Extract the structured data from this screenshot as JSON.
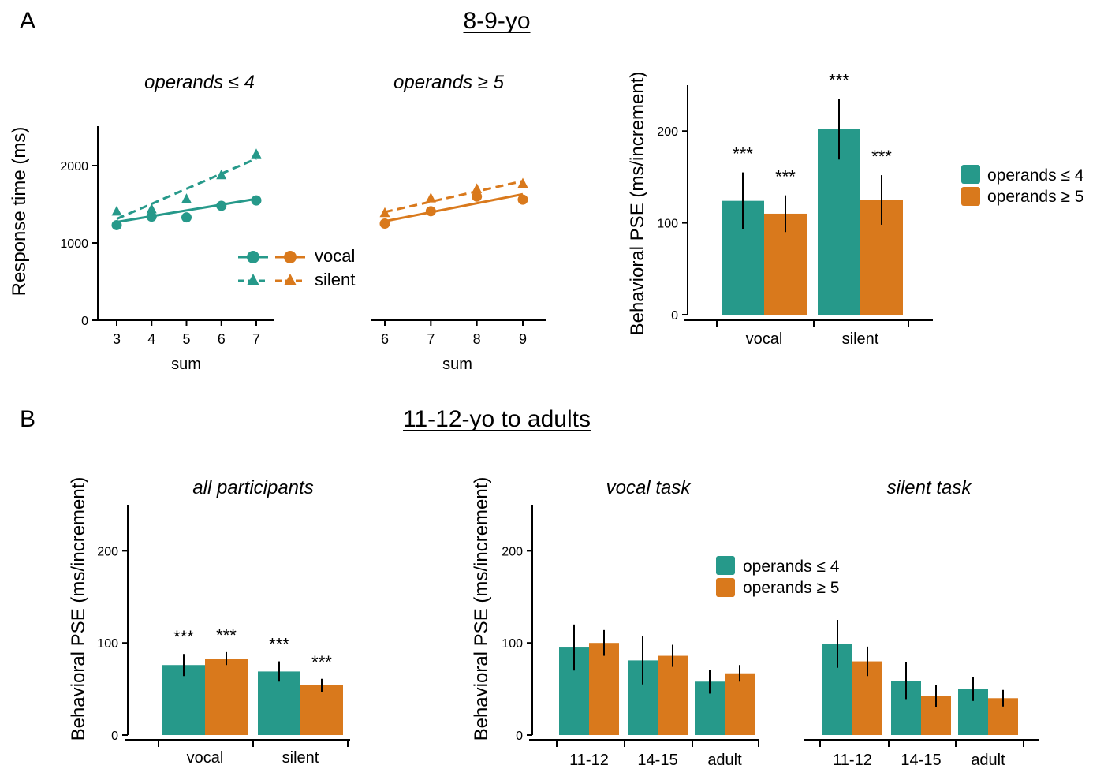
{
  "colors": {
    "teal": "#26998a",
    "orange": "#d9791c",
    "axis": "#000000"
  },
  "panel_a": {
    "letter": "A",
    "title": "8-9-yo",
    "legend": {
      "vocal": "vocal",
      "silent": "silent"
    },
    "bar_legend": {
      "small": "operands ≤ 4",
      "large": "operands ≥ 5"
    }
  },
  "panel_b": {
    "letter": "B",
    "title": "11-12-yo to adults",
    "legend": {
      "small": "operands ≤ 4",
      "large": "operands ≥ 5"
    }
  },
  "chart_data": [
    {
      "type": "line",
      "title": "operands ≤ 4",
      "xlabel": "sum",
      "ylabel": "Response time (ms)",
      "x": [
        3,
        4,
        5,
        6,
        7
      ],
      "xlim": [
        2.6,
        7.6
      ],
      "ylim": [
        0,
        2500
      ],
      "yticks": [
        0,
        1000,
        2000
      ],
      "series": [
        {
          "name": "vocal",
          "marker": "circle",
          "dashed": false,
          "color": "#26998a",
          "values": [
            1230,
            1340,
            1330,
            1480,
            1550
          ],
          "fit": [
            1270,
            1570
          ]
        },
        {
          "name": "silent",
          "marker": "triangle",
          "dashed": true,
          "color": "#26998a",
          "values": [
            1410,
            1440,
            1570,
            1880,
            2150
          ],
          "fit": [
            1310,
            2090
          ]
        }
      ]
    },
    {
      "type": "line",
      "title": "operands ≥ 5",
      "xlabel": "sum",
      "ylabel": "",
      "x": [
        6,
        7,
        8,
        9
      ],
      "xlim": [
        5.7,
        9.1
      ],
      "ylim": [
        0,
        2500
      ],
      "yticks": [],
      "series": [
        {
          "name": "vocal",
          "marker": "circle",
          "dashed": false,
          "color": "#d9791c",
          "values": [
            1250,
            1410,
            1600,
            1560
          ],
          "fit": [
            1280,
            1630
          ]
        },
        {
          "name": "silent",
          "marker": "triangle",
          "dashed": true,
          "color": "#d9791c",
          "values": [
            1390,
            1580,
            1700,
            1770
          ],
          "fit": [
            1400,
            1800
          ]
        }
      ]
    },
    {
      "type": "bar",
      "title": "",
      "ylabel": "Behavioral PSE (ms/increment)",
      "ylim": [
        0,
        250
      ],
      "yticks": [
        0,
        100,
        200
      ],
      "categories": [
        "vocal",
        "silent"
      ],
      "series": [
        {
          "name": "operands ≤ 4",
          "color": "#26998a",
          "values": [
            124,
            202
          ],
          "err": [
            31,
            33
          ],
          "sig": [
            "***",
            "***"
          ]
        },
        {
          "name": "operands ≥ 5",
          "color": "#d9791c",
          "values": [
            110,
            125
          ],
          "err": [
            20,
            27
          ],
          "sig": [
            "***",
            "***"
          ]
        }
      ]
    },
    {
      "type": "bar",
      "title": "all participants",
      "ylabel": "Behavioral PSE (ms/increment)",
      "ylim": [
        0,
        250
      ],
      "yticks": [
        0,
        100,
        200
      ],
      "categories": [
        "vocal",
        "silent"
      ],
      "series": [
        {
          "name": "operands ≤ 4",
          "color": "#26998a",
          "values": [
            76,
            69
          ],
          "err": [
            12,
            11
          ],
          "sig": [
            "***",
            "***"
          ]
        },
        {
          "name": "operands ≥ 5",
          "color": "#d9791c",
          "values": [
            83,
            54
          ],
          "err": [
            7,
            7
          ],
          "sig": [
            "***",
            "***"
          ]
        }
      ]
    },
    {
      "type": "bar",
      "title": "vocal task",
      "ylabel": "Behavioral PSE (ms/increment)",
      "ylim": [
        0,
        250
      ],
      "yticks": [
        0,
        100,
        200
      ],
      "categories": [
        "11-12",
        "14-15",
        "adult"
      ],
      "series": [
        {
          "name": "operands ≤ 4",
          "color": "#26998a",
          "values": [
            95,
            81,
            58
          ],
          "err": [
            25,
            26,
            13
          ]
        },
        {
          "name": "operands ≥ 5",
          "color": "#d9791c",
          "values": [
            100,
            86,
            67
          ],
          "err": [
            14,
            12,
            9
          ]
        }
      ]
    },
    {
      "type": "bar",
      "title": "silent task",
      "ylabel": "",
      "ylim": [
        0,
        250
      ],
      "yticks": [],
      "categories": [
        "11-12",
        "14-15",
        "adult"
      ],
      "series": [
        {
          "name": "operands ≤ 4",
          "color": "#26998a",
          "values": [
            99,
            59,
            50
          ],
          "err": [
            26,
            20,
            13
          ]
        },
        {
          "name": "operands ≥ 5",
          "color": "#d9791c",
          "values": [
            80,
            42,
            40
          ],
          "err": [
            16,
            12,
            9
          ]
        }
      ]
    }
  ]
}
